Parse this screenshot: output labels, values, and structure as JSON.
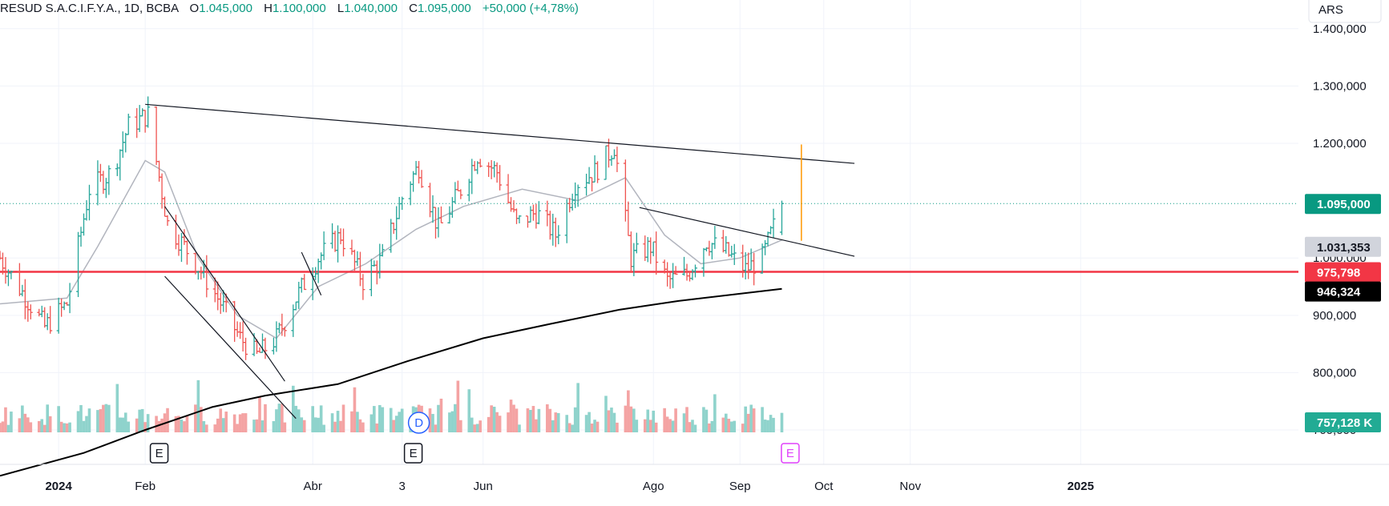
{
  "header": {
    "symbol": "RESUD S.A.C.I.F.Y.A.",
    "interval": "1D",
    "exchange": "BCBA",
    "o_label": "O",
    "o": "1.045,000",
    "h_label": "H",
    "h": "1.100,000",
    "l_label": "L",
    "l": "1.040,000",
    "c_label": "C",
    "c": "1.095,000",
    "change": "+50,000 (+4,78%)"
  },
  "currency": "ARS",
  "colors": {
    "up": "#26a69a",
    "down": "#ef5350",
    "vol_up": "#8fd3cc",
    "vol_down": "#f4a3a3",
    "ma_fast": "#b2b5be",
    "ma_slow": "#000000",
    "support": "#f23645",
    "price_tag": "#089981",
    "ma_fast_tag": "#d1d4dc",
    "ma_slow_tag": "#000000",
    "volume_tag": "#22ab94",
    "event_e": "#e040fb",
    "event_d": "#2962ff",
    "breakout_bar": "#ff9800"
  },
  "chart_data": {
    "type": "candlestick-ohlc",
    "y_unit": "ARS",
    "ylim": [
      640000,
      1450000
    ],
    "y_ticks": [
      {
        "v": 1400000,
        "label": "1.400,000"
      },
      {
        "v": 1300000,
        "label": "1.300,000"
      },
      {
        "v": 1200000,
        "label": "1.200,000"
      },
      {
        "v": 1000000,
        "label": "1.000,000"
      },
      {
        "v": 900000,
        "label": "900,000"
      },
      {
        "v": 800000,
        "label": "800,000"
      },
      {
        "v": 700000,
        "label": "700,000"
      }
    ],
    "x_ticks": [
      {
        "date": "2024-01-01",
        "label": "2024"
      },
      {
        "date": "2024-02-01",
        "label": "Feb"
      },
      {
        "date": "2024-04-01",
        "label": "Abr"
      },
      {
        "date": "2024-05-03",
        "label": "3"
      },
      {
        "date": "2024-06-01",
        "label": "Jun"
      },
      {
        "date": "2024-08-01",
        "label": "Ago"
      },
      {
        "date": "2024-09-01",
        "label": "Sep"
      },
      {
        "date": "2024-10-01",
        "label": "Oct"
      },
      {
        "date": "2024-11-01",
        "label": "Nov"
      },
      {
        "date": "2025-01-01",
        "label": "2025"
      }
    ],
    "x_range": [
      "2023-12-11",
      "2025-03-20"
    ],
    "price_line": {
      "value": 1095000,
      "label": "1.095,000"
    },
    "ma_fast_value": {
      "value": 1031353,
      "label": "1.031,353"
    },
    "ma_slow_value": {
      "value": 946324,
      "label": "946,324"
    },
    "support_level": {
      "value": 975798,
      "label": "975,798"
    },
    "volume_last": {
      "label": "757,128 K"
    },
    "price_path": [
      [
        "2023-12-11",
        1000000
      ],
      [
        "2023-12-19",
        940000
      ],
      [
        "2023-12-27",
        880000
      ],
      [
        "2024-01-04",
        920000
      ],
      [
        "2024-01-12",
        1120000
      ],
      [
        "2024-01-20",
        1150000
      ],
      [
        "2024-01-26",
        1230000
      ],
      [
        "2024-02-02",
        1250000
      ],
      [
        "2024-02-09",
        1060000
      ],
      [
        "2024-02-18",
        1000000
      ],
      [
        "2024-02-27",
        930000
      ],
      [
        "2024-03-06",
        860000
      ],
      [
        "2024-03-12",
        830000
      ],
      [
        "2024-03-19",
        860000
      ],
      [
        "2024-03-26",
        930000
      ],
      [
        "2024-04-03",
        1000000
      ],
      [
        "2024-04-11",
        1040000
      ],
      [
        "2024-04-19",
        960000
      ],
      [
        "2024-04-26",
        1000000
      ],
      [
        "2024-05-04",
        1120000
      ],
      [
        "2024-05-09",
        1160000
      ],
      [
        "2024-05-16",
        1050000
      ],
      [
        "2024-05-23",
        1110000
      ],
      [
        "2024-05-30",
        1180000
      ],
      [
        "2024-06-06",
        1150000
      ],
      [
        "2024-06-13",
        1060000
      ],
      [
        "2024-06-20",
        1080000
      ],
      [
        "2024-06-27",
        1040000
      ],
      [
        "2024-07-04",
        1130000
      ],
      [
        "2024-07-11",
        1150000
      ],
      [
        "2024-07-18",
        1195000
      ],
      [
        "2024-07-24",
        1000000
      ],
      [
        "2024-07-31",
        1020000
      ],
      [
        "2024-08-06",
        960000
      ],
      [
        "2024-08-13",
        970000
      ],
      [
        "2024-08-20",
        1030000
      ],
      [
        "2024-08-27",
        1010000
      ],
      [
        "2024-09-03",
        980000
      ],
      [
        "2024-09-09",
        1000000
      ],
      [
        "2024-09-16",
        1095000
      ]
    ],
    "ma_fast_path": [
      [
        "2023-12-11",
        920000
      ],
      [
        "2024-01-04",
        930000
      ],
      [
        "2024-01-15",
        1020000
      ],
      [
        "2024-02-01",
        1170000
      ],
      [
        "2024-02-08",
        1150000
      ],
      [
        "2024-02-20",
        1000000
      ],
      [
        "2024-03-05",
        900000
      ],
      [
        "2024-03-19",
        860000
      ],
      [
        "2024-04-03",
        950000
      ],
      [
        "2024-04-20",
        990000
      ],
      [
        "2024-05-08",
        1050000
      ],
      [
        "2024-05-25",
        1090000
      ],
      [
        "2024-06-15",
        1120000
      ],
      [
        "2024-07-05",
        1100000
      ],
      [
        "2024-07-22",
        1140000
      ],
      [
        "2024-08-05",
        1040000
      ],
      [
        "2024-08-18",
        990000
      ],
      [
        "2024-09-01",
        1000000
      ],
      [
        "2024-09-16",
        1031353
      ]
    ],
    "ma_slow_path": [
      [
        "2023-12-11",
        620000
      ],
      [
        "2024-01-10",
        660000
      ],
      [
        "2024-02-01",
        700000
      ],
      [
        "2024-02-25",
        740000
      ],
      [
        "2024-03-15",
        760000
      ],
      [
        "2024-04-10",
        780000
      ],
      [
        "2024-05-05",
        820000
      ],
      [
        "2024-06-01",
        860000
      ],
      [
        "2024-06-25",
        885000
      ],
      [
        "2024-07-20",
        910000
      ],
      [
        "2024-08-10",
        925000
      ],
      [
        "2024-09-16",
        946324
      ]
    ],
    "volume_bars": {
      "count": 190,
      "recent_max_label": "757,128 K"
    },
    "trendlines": [
      {
        "from": [
          "2024-02-01",
          1268000
        ],
        "to": [
          "2024-10-12",
          1165000
        ]
      },
      {
        "from": [
          "2024-07-27",
          1088000
        ],
        "to": [
          "2024-10-12",
          1003000
        ]
      },
      {
        "from": [
          "2024-02-08",
          968000
        ],
        "to": [
          "2024-03-26",
          720000
        ]
      },
      {
        "from": [
          "2024-02-08",
          1090000
        ],
        "to": [
          "2024-03-22",
          785000
        ]
      },
      {
        "from": [
          "2024-03-28",
          1010000
        ],
        "to": [
          "2024-04-04",
          935000
        ]
      }
    ],
    "breakout_bar": {
      "date": "2024-09-23",
      "high": 1198000,
      "low": 1030000
    },
    "events": [
      {
        "date": "2024-02-06",
        "label": "E",
        "kind": "earnings"
      },
      {
        "date": "2024-05-07",
        "label": "E",
        "kind": "earnings"
      },
      {
        "date": "2024-05-07",
        "label": "D",
        "kind": "dividend"
      },
      {
        "date": "2024-09-19",
        "label": "E",
        "kind": "earnings-upcoming"
      }
    ]
  }
}
